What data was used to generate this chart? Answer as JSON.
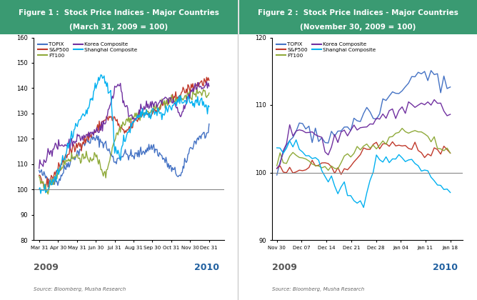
{
  "fig1_title_line1": "Figure 1 :  Stock Price Indices - Major Countries",
  "fig1_title_line2": "(March 31, 2009 = 100)",
  "fig2_title_line1": "Figure 2 :  Stock Price Indices - Major Countries",
  "fig2_title_line2": "(November 30, 2009 = 100)",
  "title_bg_color": "#3a9a72",
  "title_text_color": "#ffffff",
  "source_text": "Source: Bloomberg, Musha Research",
  "colors": {
    "TOPIX": "#4472c4",
    "SP500": "#c0392b",
    "FT100": "#8faa3a",
    "Korea": "#7030a0",
    "Shanghai": "#00b0f0"
  },
  "fig1_xlabels": [
    "Mar 31",
    "Apr 30",
    "May 31",
    "Jun 30",
    "Jul 31",
    "Aug 31",
    "Sep 30",
    "Oct 31",
    "Nov 30",
    "Dec 31"
  ],
  "fig1_ylim": [
    80,
    160
  ],
  "fig1_yticks": [
    80,
    90,
    100,
    110,
    120,
    130,
    140,
    150,
    160
  ],
  "fig2_xlabels": [
    "Nov 30",
    "Dec 07",
    "Dec 14",
    "Dec 21",
    "Dec 28",
    "Jan 04",
    "Jan 11",
    "Jan 18"
  ],
  "fig2_ylim": [
    90,
    120
  ],
  "fig2_yticks": [
    90,
    100,
    110,
    120
  ],
  "year1_left": "2009",
  "year1_right": "2010",
  "year2_left": "2009",
  "year2_right": "2010"
}
